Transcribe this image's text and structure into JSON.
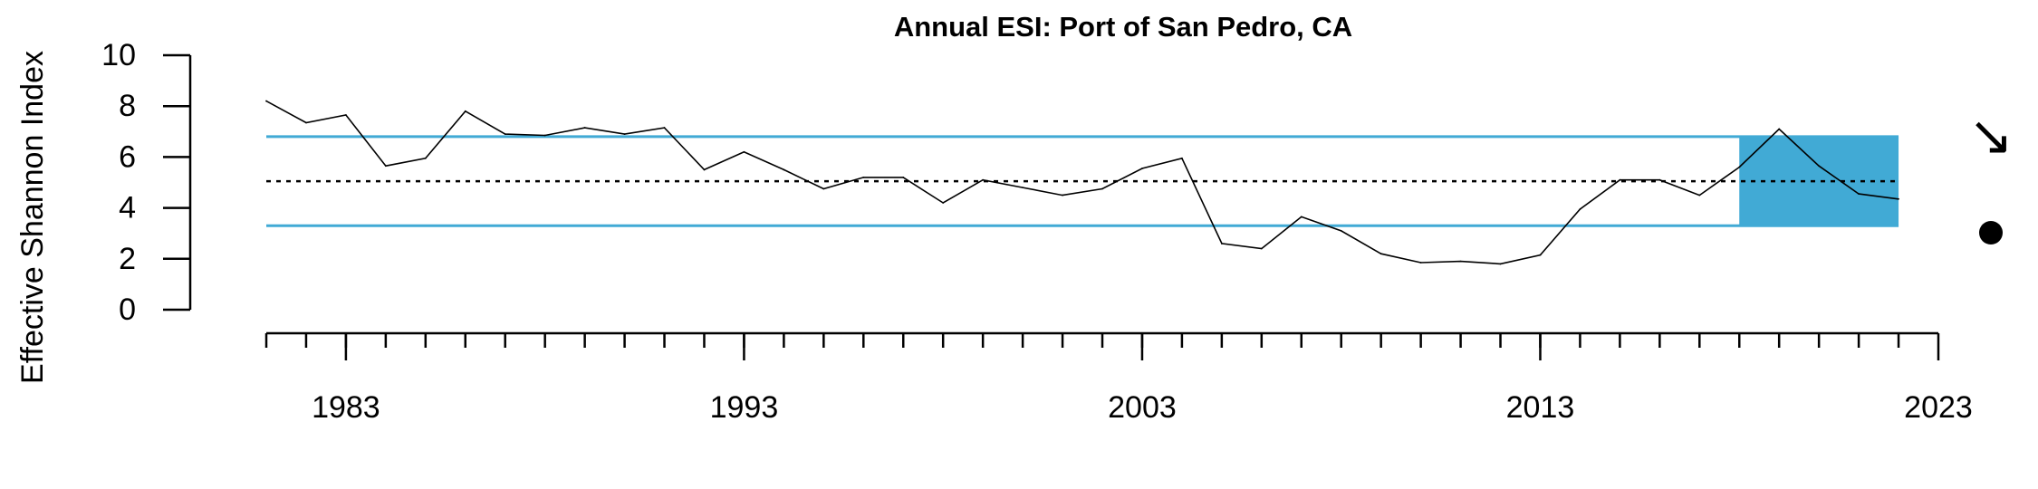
{
  "chart_data": {
    "type": "line",
    "title": "Annual ESI: Port of San Pedro, CA",
    "xlabel": "",
    "ylabel": "Effective Shannon Index",
    "xlim": [
      1981,
      2023
    ],
    "ylim": [
      0,
      10
    ],
    "y_ticks": [
      0,
      2,
      4,
      6,
      8,
      10
    ],
    "x_major_ticks": [
      1983,
      1993,
      2003,
      2013,
      2023
    ],
    "x_minor_tick_start": 1981,
    "x_minor_tick_end": 2022,
    "mean": 5.05,
    "upper_band": 6.8,
    "lower_band": 3.3,
    "highlight_range": [
      2018,
      2022
    ],
    "grid": false,
    "legend": "none",
    "trend_symbol": "↘",
    "status_marker": "filled-circle",
    "colors": {
      "series": "#000000",
      "band_lines": "#41aad5",
      "highlight": "#41aad5",
      "mean_line": "#000000"
    },
    "series": [
      {
        "x": [
          1981,
          1982,
          1983,
          1984,
          1985,
          1986,
          1987,
          1988,
          1989,
          1990,
          1991,
          1992,
          1993,
          1994,
          1995,
          1996,
          1997,
          1998,
          1999,
          2000,
          2001,
          2002,
          2003,
          2004,
          2005,
          2006,
          2007,
          2008,
          2009,
          2010,
          2011,
          2012,
          2013,
          2014,
          2015,
          2016,
          2017,
          2018,
          2019,
          2020,
          2021,
          2022
        ],
        "values": [
          8.2,
          7.35,
          7.65,
          5.65,
          5.95,
          7.8,
          6.9,
          6.85,
          7.15,
          6.9,
          7.15,
          5.5,
          6.2,
          5.5,
          4.75,
          5.2,
          5.2,
          4.2,
          5.1,
          4.8,
          4.5,
          4.75,
          5.55,
          5.95,
          2.6,
          2.4,
          3.65,
          3.1,
          2.2,
          1.85,
          1.9,
          1.8,
          2.15,
          3.95,
          5.1,
          5.1,
          4.5,
          5.6,
          7.1,
          5.65,
          4.55,
          4.35
        ]
      }
    ]
  }
}
